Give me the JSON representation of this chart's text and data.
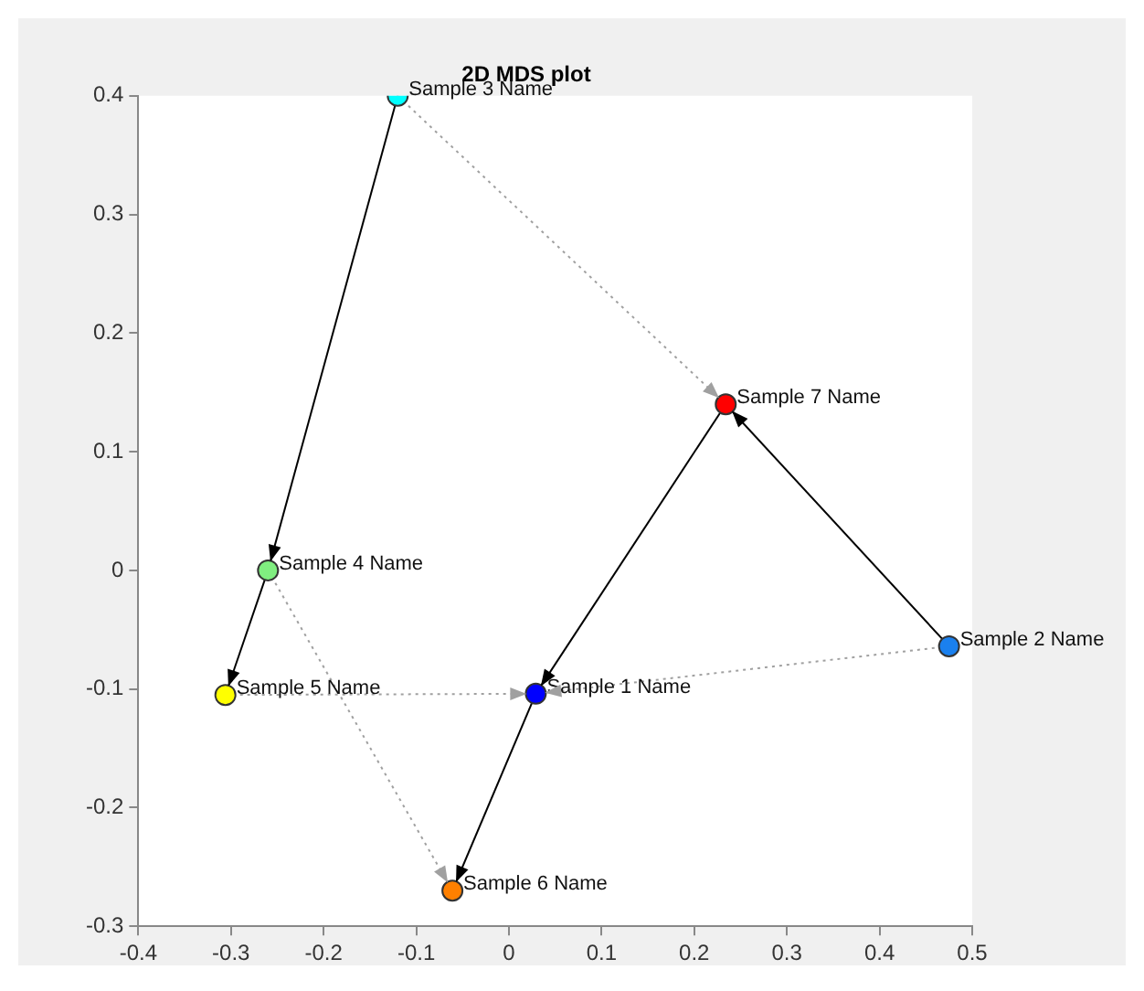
{
  "chart_data": {
    "type": "scatter",
    "title": "2D MDS plot",
    "xlim": [
      -0.4,
      0.5
    ],
    "xticks": [
      -0.4,
      -0.3,
      -0.2,
      -0.1,
      0,
      0.1,
      0.2,
      0.3,
      0.4,
      0.5
    ],
    "ylim": [
      -0.3,
      0.4
    ],
    "yticks": [
      -0.3,
      -0.2,
      -0.1,
      0,
      0.1,
      0.2,
      0.3,
      0.4
    ],
    "grid": false,
    "legend": false,
    "series": [
      {
        "type": "line",
        "color": "#000000",
        "line_style": "solid",
        "marker": "none",
        "x": [
          -0.12,
          -0.26
        ],
        "values": [
          0.4,
          0.0
        ]
      },
      {
        "type": "line",
        "color": "#000000",
        "line_style": "solid",
        "marker": "none",
        "x": [
          -0.26,
          -0.306
        ],
        "values": [
          0.0,
          -0.105
        ]
      },
      {
        "type": "line",
        "color": "#000000",
        "line_style": "solid",
        "marker": "none",
        "x": [
          0.029,
          -0.061
        ],
        "values": [
          -0.104,
          -0.27
        ]
      },
      {
        "type": "line",
        "color": "#000000",
        "line_style": "solid",
        "marker": "none",
        "x": [
          0.234,
          0.029
        ],
        "values": [
          0.14,
          -0.104
        ]
      },
      {
        "type": "line",
        "color": "#000000",
        "line_style": "solid",
        "marker": "none",
        "x": [
          0.475,
          0.234
        ],
        "values": [
          -0.064,
          0.14
        ]
      },
      {
        "type": "line",
        "color": "#a0a0a0",
        "line_style": "dotted",
        "marker": "none",
        "x": [
          -0.12,
          0.234
        ],
        "values": [
          0.4,
          0.14
        ]
      },
      {
        "type": "line",
        "color": "#a0a0a0",
        "line_style": "dotted",
        "marker": "none",
        "x": [
          -0.306,
          0.029
        ],
        "values": [
          -0.105,
          -0.104
        ]
      },
      {
        "type": "line",
        "color": "#a0a0a0",
        "line_style": "dotted",
        "marker": "none",
        "x": [
          -0.26,
          -0.061
        ],
        "values": [
          0.0,
          -0.27
        ]
      },
      {
        "type": "line",
        "color": "#a0a0a0",
        "line_style": "dotted",
        "marker": "none",
        "x": [
          0.475,
          0.029
        ],
        "values": [
          -0.064,
          -0.104
        ]
      },
      {
        "type": "scatter",
        "name": "Sample 1 Name",
        "color": "#0000ff",
        "marker": "circle",
        "x": [
          0.029
        ],
        "values": [
          -0.104
        ]
      },
      {
        "type": "scatter",
        "name": "Sample 2 Name",
        "color": "#1a80ee",
        "marker": "circle",
        "x": [
          0.475
        ],
        "values": [
          -0.064
        ]
      },
      {
        "type": "scatter",
        "name": "Sample 3 Name",
        "color": "#00ffff",
        "marker": "circle",
        "x": [
          -0.12
        ],
        "values": [
          0.4
        ]
      },
      {
        "type": "scatter",
        "name": "Sample 4 Name",
        "color": "#80ee80",
        "marker": "circle",
        "x": [
          -0.26
        ],
        "values": [
          0.0
        ]
      },
      {
        "type": "scatter",
        "name": "Sample 5 Name",
        "color": "#ffff00",
        "marker": "circle",
        "x": [
          -0.306
        ],
        "values": [
          -0.105
        ]
      },
      {
        "type": "scatter",
        "name": "Sample 6 Name",
        "color": "#ff8000",
        "marker": "circle",
        "x": [
          -0.061
        ],
        "values": [
          -0.27
        ]
      },
      {
        "type": "scatter",
        "name": "Sample 7 Name",
        "color": "#ff0000",
        "marker": "circle",
        "x": [
          0.234
        ],
        "values": [
          0.14
        ]
      }
    ]
  }
}
